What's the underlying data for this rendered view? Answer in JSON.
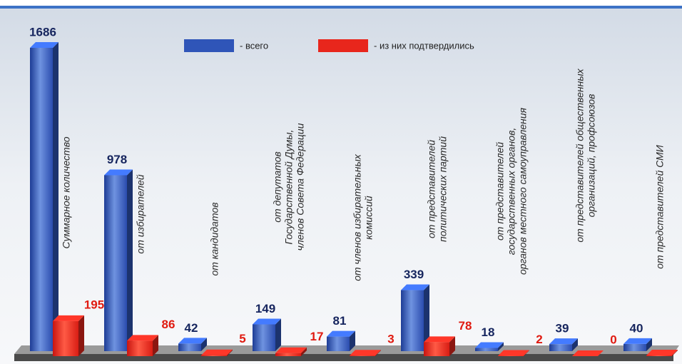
{
  "chart_data": {
    "type": "bar",
    "categories": [
      [
        "Суммарное количество"
      ],
      [
        "от избирателей"
      ],
      [
        "от кандидатов"
      ],
      [
        "от депутатов",
        "Государственной Думы,",
        "членов Совета Федерации"
      ],
      [
        "от членов избирательных",
        "комиссий"
      ],
      [
        "от представителей",
        "политических партий"
      ],
      [
        "от представителей",
        "государственных органов,",
        "органов местного самоуправления"
      ],
      [
        "от представителей общественных",
        "организаций, профсоюзов"
      ],
      [
        "от представителей СМИ"
      ]
    ],
    "series": [
      {
        "name": "- всего",
        "color": "#2f55b8",
        "values": [
          1686,
          978,
          42,
          149,
          81,
          339,
          18,
          39,
          40
        ]
      },
      {
        "name": "- из них подтвердились",
        "color": "#e8261c",
        "values": [
          195,
          86,
          5,
          17,
          3,
          78,
          2,
          0,
          4
        ]
      }
    ]
  }
}
